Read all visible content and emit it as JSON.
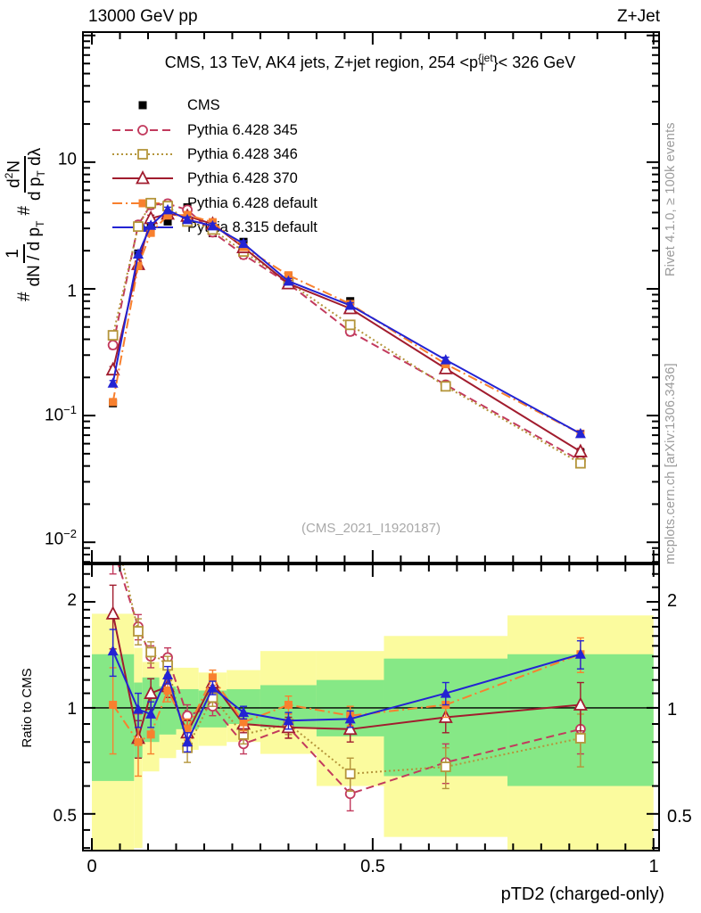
{
  "header": {
    "left": "13000 GeV pp",
    "right": "Z+Jet"
  },
  "watermarks": {
    "rivet": "Rivet 4.1.0, ≥ 100k events",
    "mcplots": "mcplots.cern.ch [arXiv:1306.3436]",
    "analysis": "(CMS_2021_I1920187)"
  },
  "main_panel": {
    "title": {
      "pre": "CMS, 13 TeV, AK4 jets, Z+jet region, 254 <p",
      "sup": "{jet",
      "sub": "T",
      "post": "}< 326 GeV"
    },
    "ylabel": {
      "hash": "#",
      "f1_num": "1",
      "f1_den_a": "dN / d p",
      "f1_den_sub": "T",
      "f2_num_a": "d",
      "f2_num_sup": "2",
      "f2_num_b": "N",
      "f2_den_a": "d p",
      "f2_den_sub": "T",
      "f2_den_b": " dλ"
    },
    "yticks": [
      {
        "base": "10",
        "exp": ""
      },
      {
        "base": "1",
        "exp": ""
      },
      {
        "base": "10",
        "exp": "−1"
      },
      {
        "base": "10",
        "exp": "−2"
      }
    ]
  },
  "ratio_panel": {
    "ylabel": "Ratio to CMS",
    "yticks": [
      "2",
      "1",
      "0.5"
    ]
  },
  "xaxis": {
    "label": "pTD2 (charged-only)",
    "ticks": [
      "0",
      "0.5",
      "1"
    ]
  },
  "chart_data": {
    "type": "line",
    "title": "CMS, 13 TeV, AK4 jets, Z+jet region, 254 <p_T^{jet}< 326 GeV",
    "xlabel": "pTD2 (charged-only)",
    "ylabel_main": "# 1/(dN/dp_T) # d2N/(dp_T dlambda)",
    "ylabel_ratio": "Ratio to CMS",
    "x_scale": "linear",
    "y_scale_main": "log",
    "y_scale_ratio": "log",
    "xlim": [
      -0.0175,
      1.0115
    ],
    "ylim_main": [
      0.0068,
      108
    ],
    "ylim_ratio": [
      0.391,
      2.57
    ],
    "x": [
      0.0375,
      0.0825,
      0.105,
      0.135,
      0.17,
      0.215,
      0.27,
      0.35,
      0.46,
      0.63,
      0.87
    ],
    "bin_edges": [
      0,
      0.075,
      0.09,
      0.12,
      0.15,
      0.19,
      0.24,
      0.3,
      0.4,
      0.52,
      0.74,
      1.0
    ],
    "series": [
      {
        "name": "CMS",
        "color": "#000000",
        "line": "none",
        "marker": "square-filled",
        "values": [
          0.125,
          1.9,
          3.3,
          3.4,
          4.4,
          2.75,
          2.35,
          1.25,
          0.8,
          0.25,
          0.051
        ],
        "err_frac": 0.05,
        "ratio": null,
        "ratio_err": null
      },
      {
        "name": "Pythia 6.428 345",
        "color": "#c23a5d",
        "line": "dash",
        "marker": "circle-open",
        "values": [
          0.36,
          3.2,
          4.6,
          4.7,
          4.2,
          2.8,
          1.86,
          1.1,
          0.46,
          0.175,
          0.044
        ],
        "err_frac": 0.07,
        "ratio": [
          2.85,
          1.7,
          1.4,
          1.39,
          0.95,
          1.01,
          0.79,
          0.88,
          0.57,
          0.7,
          0.87
        ],
        "ratio_err": [
          0.45,
          0.14,
          0.1,
          0.09,
          0.07,
          0.06,
          0.05,
          0.06,
          0.06,
          0.09,
          0.13
        ]
      },
      {
        "name": "Pythia 6.428 346",
        "color": "#b4953b",
        "line": "dot",
        "marker": "square-open",
        "values": [
          0.43,
          3.1,
          4.75,
          4.5,
          3.4,
          2.94,
          1.97,
          1.13,
          0.52,
          0.17,
          0.042
        ],
        "err_frac": 0.07,
        "ratio": [
          3.4,
          1.65,
          1.44,
          1.32,
          0.77,
          1.07,
          0.84,
          0.9,
          0.65,
          0.68,
          0.82
        ],
        "ratio_err": [
          0.5,
          0.14,
          0.1,
          0.08,
          0.07,
          0.06,
          0.05,
          0.06,
          0.07,
          0.09,
          0.14
        ]
      },
      {
        "name": "Pythia 6.428 370",
        "color": "#a11c2e",
        "line": "solid",
        "marker": "triangle-open",
        "values": [
          0.23,
          1.56,
          3.6,
          3.9,
          3.75,
          3.25,
          2.12,
          1.1,
          0.7,
          0.235,
          0.052
        ],
        "err_frac": 0.06,
        "ratio": [
          1.85,
          0.82,
          1.1,
          1.15,
          0.85,
          1.18,
          0.9,
          0.88,
          0.87,
          0.94,
          1.02
        ],
        "ratio_err": [
          0.38,
          0.1,
          0.11,
          0.08,
          0.07,
          0.06,
          0.05,
          0.06,
          0.07,
          0.09,
          0.16
        ]
      },
      {
        "name": "Pythia 6.428 default",
        "color": "#f8802e",
        "line": "dashdot",
        "marker": "square-filled",
        "values": [
          0.128,
          1.52,
          2.77,
          3.8,
          3.83,
          3.36,
          2.14,
          1.28,
          0.76,
          0.255,
          0.072
        ],
        "err_frac": 0.06,
        "ratio": [
          1.02,
          0.8,
          0.84,
          1.12,
          0.87,
          1.22,
          0.91,
          1.02,
          0.95,
          1.02,
          1.42
        ],
        "ratio_err": [
          0.28,
          0.16,
          0.1,
          0.08,
          0.06,
          0.06,
          0.05,
          0.06,
          0.06,
          0.08,
          0.16
        ]
      },
      {
        "name": "Pythia 8.315 default",
        "color": "#2323d3",
        "line": "solid",
        "marker": "triangle-filled",
        "values": [
          0.18,
          1.88,
          3.17,
          4.2,
          3.52,
          3.14,
          2.28,
          1.15,
          0.74,
          0.275,
          0.072
        ],
        "err_frac": 0.05,
        "ratio": [
          1.45,
          0.99,
          0.96,
          1.24,
          0.8,
          1.14,
          0.97,
          0.92,
          0.93,
          1.1,
          1.42
        ],
        "ratio_err": [
          0.22,
          0.11,
          0.08,
          0.07,
          0.05,
          0.05,
          0.04,
          0.05,
          0.05,
          0.08,
          0.13
        ]
      }
    ],
    "bands": {
      "green_color": "#86e886",
      "yellow_color": "#fbfb9e",
      "bins": [
        {
          "x0": 0.0,
          "x1": 0.075,
          "g": [
            0.62,
            1.42
          ],
          "y": [
            0.28,
            1.85
          ]
        },
        {
          "x0": 0.075,
          "x1": 0.09,
          "g": [
            0.72,
            1.18
          ],
          "y": [
            0.4,
            1.48
          ]
        },
        {
          "x0": 0.09,
          "x1": 0.12,
          "g": [
            0.8,
            1.22
          ],
          "y": [
            0.66,
            1.35
          ]
        },
        {
          "x0": 0.12,
          "x1": 0.15,
          "g": [
            0.84,
            1.15
          ],
          "y": [
            0.72,
            1.3
          ]
        },
        {
          "x0": 0.15,
          "x1": 0.19,
          "g": [
            0.87,
            1.13
          ],
          "y": [
            0.76,
            1.3
          ]
        },
        {
          "x0": 0.19,
          "x1": 0.24,
          "g": [
            0.88,
            1.12
          ],
          "y": [
            0.78,
            1.26
          ]
        },
        {
          "x0": 0.24,
          "x1": 0.3,
          "g": [
            0.9,
            1.13
          ],
          "y": [
            0.8,
            1.28
          ]
        },
        {
          "x0": 0.3,
          "x1": 0.4,
          "g": [
            0.88,
            1.16
          ],
          "y": [
            0.74,
            1.45
          ]
        },
        {
          "x0": 0.4,
          "x1": 0.52,
          "g": [
            0.83,
            1.2
          ],
          "y": [
            0.6,
            1.45
          ]
        },
        {
          "x0": 0.52,
          "x1": 0.74,
          "g": [
            0.64,
            1.38
          ],
          "y": [
            0.43,
            1.6
          ]
        },
        {
          "x0": 0.74,
          "x1": 1.0,
          "g": [
            0.6,
            1.42
          ],
          "y": [
            0.3,
            1.83
          ]
        }
      ]
    },
    "legend_position": "top-left-inside",
    "grid": false
  }
}
